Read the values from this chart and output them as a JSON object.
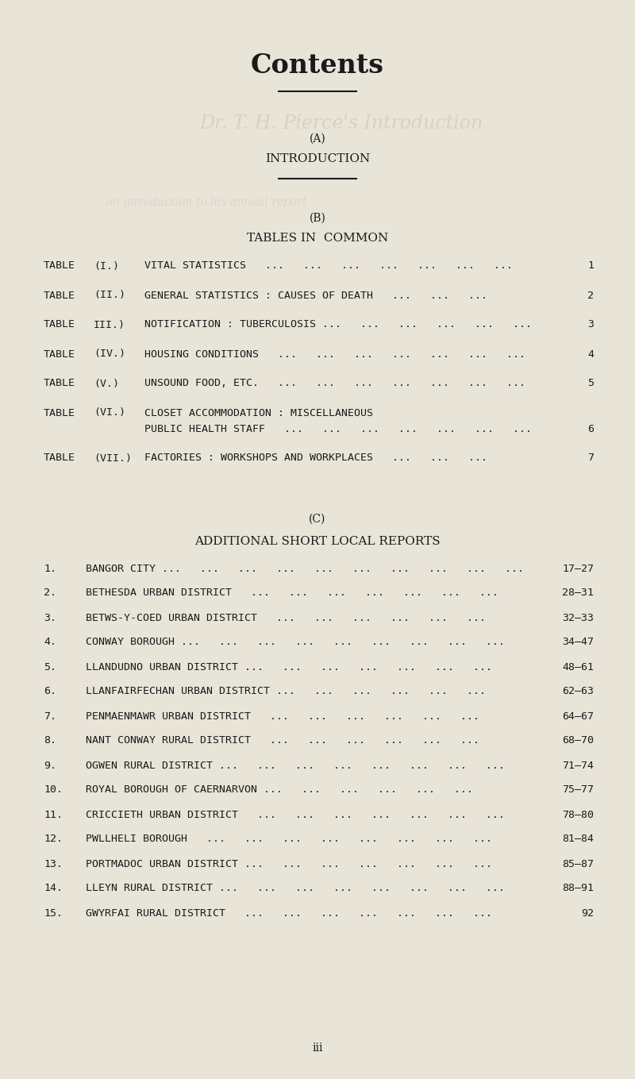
{
  "bg_color": "#e8e4d8",
  "title": "Contents",
  "title_fontsize": 24,
  "section_A_label": "(A)",
  "section_A_text": "INTRODUCTION",
  "section_B_label": "(B)",
  "section_B_text": "TABLES IN  COMMON",
  "tables": [
    {
      "num": "TABLE",
      "roman": "(I.)",
      "title": "VITAL STATISTICS   ...   ...   ...   ...   ...   ...   ...",
      "page": "1",
      "two_line": false
    },
    {
      "num": "TABLE",
      "roman": "(II.)",
      "title": "GENERAL STATISTICS : CAUSES OF DEATH   ...   ...   ...",
      "page": "2",
      "two_line": false
    },
    {
      "num": "TABLE",
      "roman": "III.)",
      "title": "NOTIFICATION : TUBERCULOSIS ...   ...   ...   ...   ...   ...",
      "page": "3",
      "two_line": false
    },
    {
      "num": "TABLE",
      "roman": "(IV.)",
      "title": "HOUSING CONDITIONS   ...   ...   ...   ...   ...   ...   ...",
      "page": "4",
      "two_line": false
    },
    {
      "num": "TABLE",
      "roman": "(V.)",
      "title": "UNSOUND FOOD, ETC.   ...   ...   ...   ...   ...   ...   ...",
      "page": "5",
      "two_line": false
    },
    {
      "num": "TABLE",
      "roman": "(VI.)",
      "title1": "CLOSET ACCOMMODATION : MISCELLANEOUS",
      "title2": "PUBLIC HEALTH STAFF   ...   ...   ...   ...   ...   ...   ...",
      "page": "6",
      "two_line": true
    },
    {
      "num": "TABLE",
      "roman": "(VII.)",
      "title": "FACTORIES : WORKSHOPS AND WORKPLACES   ...   ...   ...",
      "page": "7",
      "two_line": false
    }
  ],
  "section_C_label": "(C)",
  "section_C_text": "ADDITIONAL SHORT LOCAL REPORTS",
  "local_reports": [
    {
      "num": "1.",
      "title": "BANGOR CITY ...   ...   ...   ...   ...   ...   ...   ...   ...   ...",
      "page": "17—27"
    },
    {
      "num": "2.",
      "title": "BETHESDA URBAN DISTRICT   ...   ...   ...   ...   ...   ...   ...",
      "page": "28—31"
    },
    {
      "num": "3.",
      "title": "BETWS-Y-COED URBAN DISTRICT   ...   ...   ...   ...   ...   ...",
      "page": "32—33"
    },
    {
      "num": "4.",
      "title": "CONWAY BOROUGH ...   ...   ...   ...   ...   ...   ...   ...   ...",
      "page": "34—47"
    },
    {
      "num": "5.",
      "title": "LLANDUDNO URBAN DISTRICT ...   ...   ...   ...   ...   ...   ...",
      "page": "48—61"
    },
    {
      "num": "6.",
      "title": "LLANFAIRFECHAN URBAN DISTRICT ...   ...   ...   ...   ...   ...",
      "page": "62—63"
    },
    {
      "num": "7.",
      "title": "PENMAENMAWR URBAN DISTRICT   ...   ...   ...   ...   ...   ...",
      "page": "64—67"
    },
    {
      "num": "8.",
      "title": "NANT CONWAY RURAL DISTRICT   ...   ...   ...   ...   ...   ...",
      "page": "68—70"
    },
    {
      "num": "9.",
      "title": "OGWEN RURAL DISTRICT ...   ...   ...   ...   ...   ...   ...   ...",
      "page": "71—74"
    },
    {
      "num": "10.",
      "title": "ROYAL BOROUGH OF CAERNARVON ...   ...   ...   ...   ...   ...",
      "page": "75—77"
    },
    {
      "num": "11.",
      "title": "CRICCIETH URBAN DISTRICT   ...   ...   ...   ...   ...   ...   ...",
      "page": "78—80"
    },
    {
      "num": "12.",
      "title": "PWLLHELI BOROUGH   ...   ...   ...   ...   ...   ...   ...   ...",
      "page": "81—84"
    },
    {
      "num": "13.",
      "title": "PORTMADOC URBAN DISTRICT ...   ...   ...   ...   ...   ...   ...",
      "page": "85—87"
    },
    {
      "num": "14.",
      "title": "LLEYN RURAL DISTRICT ...   ...   ...   ...   ...   ...   ...   ...",
      "page": "88—91"
    },
    {
      "num": "15.",
      "title": "GWYRFAI RURAL DISTRICT   ...   ...   ...   ...   ...   ...   ...",
      "page": "92"
    }
  ],
  "footer_text": "iii",
  "text_color": "#1a1a1a",
  "faint_color": "#c8c0b0",
  "faint_text": "Dr. T. H. Pierce's Introduction"
}
